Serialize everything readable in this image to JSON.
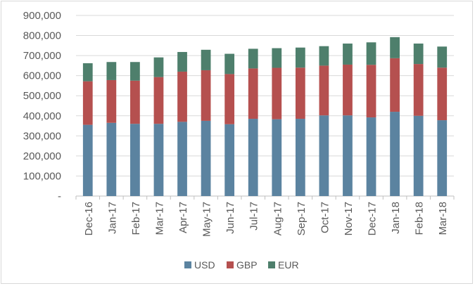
{
  "chart_data": {
    "type": "bar",
    "stacked": true,
    "title": "",
    "xlabel": "",
    "ylabel": "",
    "categories": [
      "Dec-16",
      "Jan-17",
      "Feb-17",
      "Mar-17",
      "Apr-17",
      "May-17",
      "Jun-17",
      "Jul-17",
      "Aug-17",
      "Sep-17",
      "Oct-17",
      "Nov-17",
      "Dec-17",
      "Jan-18",
      "Feb-18",
      "Mar-18"
    ],
    "series": [
      {
        "name": "USD",
        "color": "#5b83a0",
        "values": [
          355000,
          365000,
          360000,
          360000,
          370000,
          375000,
          358000,
          385000,
          383000,
          385000,
          402000,
          402000,
          392000,
          420000,
          400000,
          378000
        ]
      },
      {
        "name": "GBP",
        "color": "#b5504f",
        "values": [
          217000,
          213000,
          215000,
          233000,
          250000,
          252000,
          250000,
          251000,
          256000,
          255000,
          248000,
          253000,
          262000,
          267000,
          258000,
          262000
        ]
      },
      {
        "name": "EUR",
        "color": "#4e7f6c",
        "values": [
          90000,
          90000,
          93000,
          98000,
          98000,
          102000,
          101000,
          98000,
          98000,
          100000,
          97000,
          105000,
          112000,
          105000,
          102000,
          105000
        ]
      }
    ],
    "ylim": [
      0,
      900000
    ],
    "yticks": [
      0,
      100000,
      200000,
      300000,
      400000,
      500000,
      600000,
      700000,
      800000,
      900000
    ],
    "ytick_labels": [
      "-",
      "100,000",
      "200,000",
      "300,000",
      "400,000",
      "500,000",
      "600,000",
      "700,000",
      "800,000",
      "900,000"
    ],
    "grid": true,
    "legend_position": "bottom"
  }
}
